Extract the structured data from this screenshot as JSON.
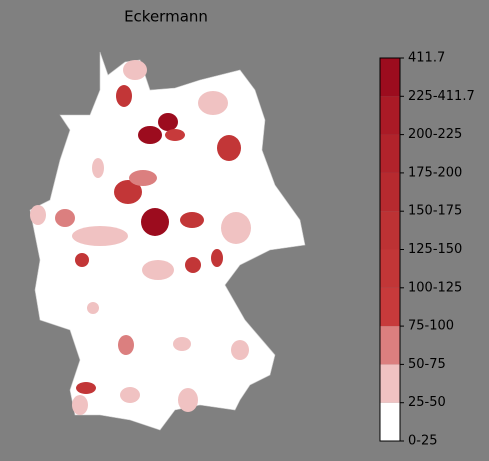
{
  "title": "Eckermann",
  "legend": {
    "labels": [
      "0-25",
      "25-50",
      "50-75",
      "75-100",
      "100-125",
      "125-150",
      "150-175",
      "175-200",
      "200-225",
      "225-411.7",
      "411.7"
    ],
    "colors": [
      "#ffffff",
      "#f0c2c2",
      "#db7f7f",
      "#c73a3b",
      "#c23637",
      "#bd3234",
      "#b72a2f",
      "#b1232b",
      "#aa1a26",
      "#9c0c1e"
    ]
  }
}
